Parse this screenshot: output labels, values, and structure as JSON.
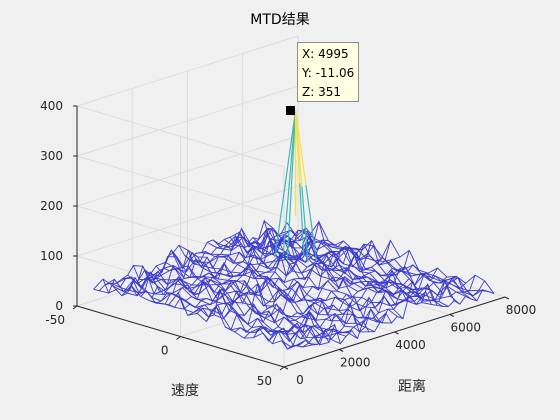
{
  "chart_data": {
    "type": "surface-mesh",
    "title": "MTD结果",
    "xlabel": "距离",
    "ylabel": "速度",
    "zlabel": "",
    "xlim": [
      0,
      8000
    ],
    "ylim": [
      -50,
      50
    ],
    "zlim": [
      0,
      400
    ],
    "x_ticks": [
      "0",
      "2000",
      "4000",
      "6000",
      "8000"
    ],
    "y_ticks": [
      "-50",
      "0",
      "50"
    ],
    "z_ticks": [
      "0",
      "100",
      "200",
      "300",
      "400"
    ],
    "grid": true,
    "mesh_color": "#3a3acc",
    "peak_color_top": "#f5e04a",
    "peak_color_mid": "#3fb6b0",
    "peak": {
      "x": 4995,
      "y": -11.06,
      "z": 351
    },
    "noise_floor_max": 90,
    "datatip": {
      "x_label": "X: 4995",
      "y_label": "Y: -11.06",
      "z_label": "Z: 351"
    }
  }
}
